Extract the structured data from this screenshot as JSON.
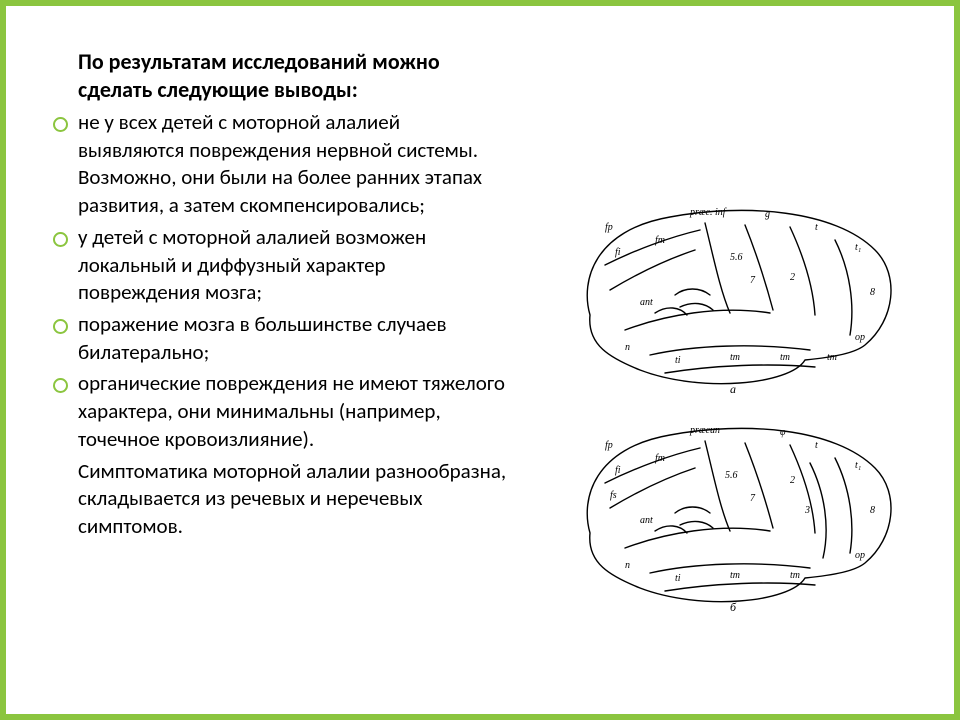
{
  "colors": {
    "accent": "#8bc53f",
    "text": "#000000",
    "background": "#ffffff",
    "diagram_stroke": "#000000"
  },
  "typography": {
    "heading_fontsize": 22,
    "heading_weight": "bold",
    "body_fontsize": 21,
    "line_height": 1.32,
    "font_family": "Calibri, Verdana, Arial, sans-serif"
  },
  "layout": {
    "slide_width": 960,
    "slide_height": 720,
    "border_width": 6,
    "text_column_width": 460,
    "bullet_indent": 28,
    "bullet_ring_size": 11,
    "bullet_ring_border": 2.5
  },
  "heading": "По результатам исследований можно сделать следующие выводы:",
  "bullets": [
    "не у всех детей с моторной алалией выявляются повреждения нервной системы. Возможно, они были на более ранних этапах развития, а затем скомпенсировались;",
    "у детей с моторной алалией возможен локальный и диффузный характер повреждения мозга;",
    "поражение мозга в большинстве случаев билатерально;",
    "органические повреждения не имеют тяжелого характера, они минимальны (например, точечное кровоизлияние)."
  ],
  "closing": "Симптоматика моторной алалии разнообразна, складывается из речевых и неречевых симптомов.",
  "diagrams": {
    "type": "anatomical-sketch",
    "count": 2,
    "stroke_color": "#000000",
    "stroke_width": 1.4,
    "fill": "none",
    "caption_labels": [
      "а",
      "б"
    ],
    "region_labels_top": [
      "fp",
      "præc. inf",
      "g",
      "fi",
      "fm",
      "fs",
      "t",
      "t₁",
      "8",
      "5.6",
      "7",
      "2",
      "ti",
      "tm",
      "tm",
      "tm",
      "n",
      "op",
      "ant"
    ],
    "region_labels_bottom": [
      "fp",
      "præcun",
      "φ",
      "fi",
      "fm",
      "fs",
      "t",
      "t₁",
      "8",
      "5.6",
      "7",
      "2",
      "3",
      "ti",
      "tm",
      "tm",
      "n",
      "op",
      "ant"
    ],
    "label_fontsize": 10
  }
}
